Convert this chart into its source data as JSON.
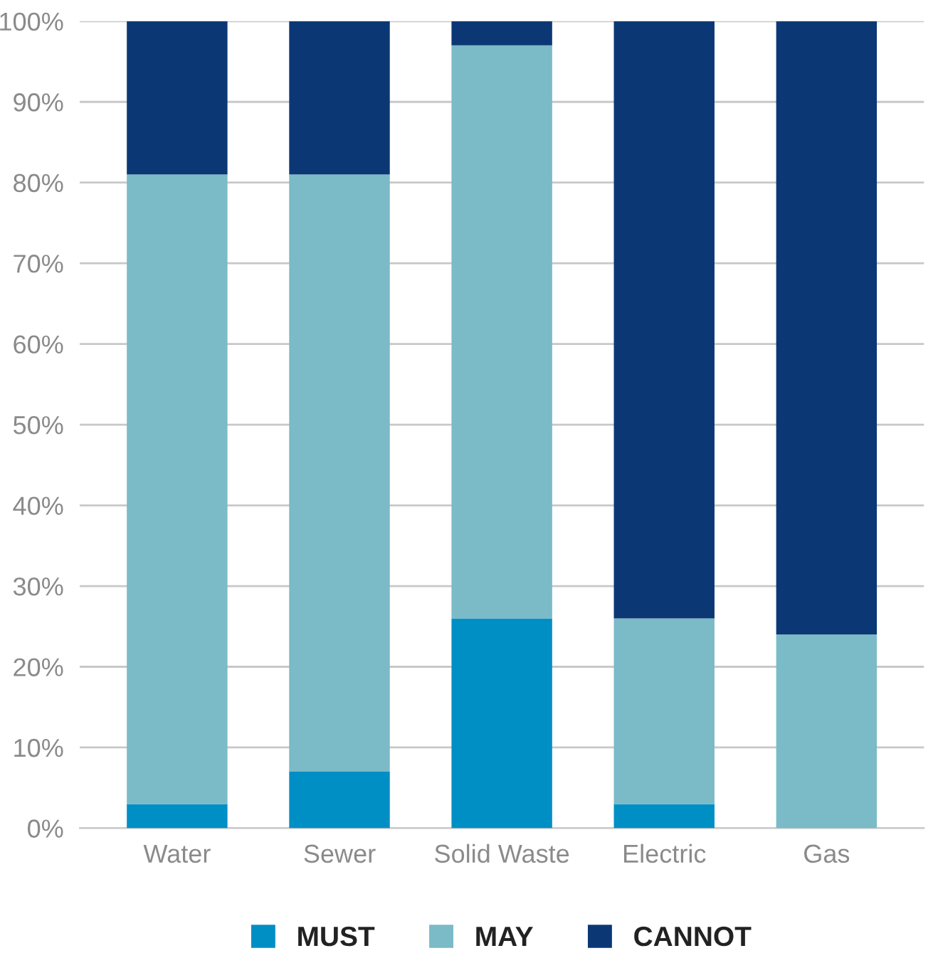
{
  "chart_data": {
    "type": "bar",
    "stacked": true,
    "categories": [
      "Water",
      "Sewer",
      "Solid Waste",
      "Electric",
      "Gas"
    ],
    "series": [
      {
        "name": "MUST",
        "color": "#008fc5",
        "values": [
          3,
          7,
          26,
          3,
          0
        ]
      },
      {
        "name": "MAY",
        "color": "#7bbac7",
        "values": [
          78,
          74,
          71,
          23,
          24
        ]
      },
      {
        "name": "CANNOT",
        "color": "#0b3875",
        "values": [
          19,
          19,
          3,
          74,
          76
        ]
      }
    ],
    "ylim": [
      0,
      100
    ],
    "yticks": [
      {
        "value": 0,
        "label": "0%"
      },
      {
        "value": 10,
        "label": "10%"
      },
      {
        "value": 20,
        "label": "20%"
      },
      {
        "value": 30,
        "label": "30%"
      },
      {
        "value": 40,
        "label": "40%"
      },
      {
        "value": 50,
        "label": "50%"
      },
      {
        "value": 60,
        "label": "60%"
      },
      {
        "value": 70,
        "label": "70%"
      },
      {
        "value": 80,
        "label": "80%"
      },
      {
        "value": 90,
        "label": "90%"
      },
      {
        "value": 100,
        "label": "100%"
      }
    ],
    "grid": "y",
    "legend": "bottom"
  }
}
